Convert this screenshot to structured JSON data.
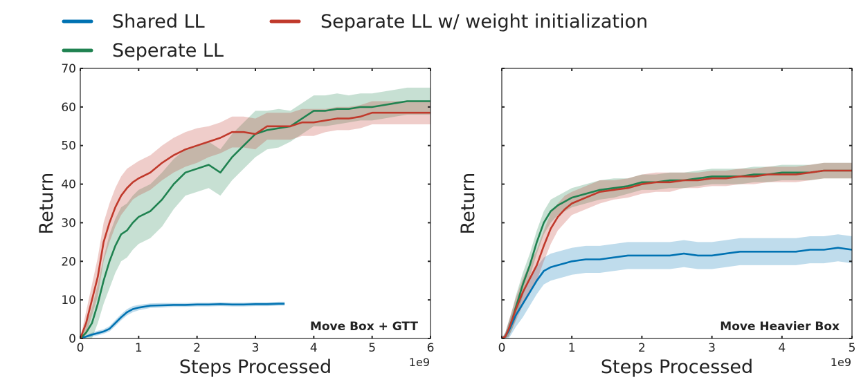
{
  "legend": {
    "items": [
      {
        "label": "Shared LL",
        "color": "#0072b2"
      },
      {
        "label": "Seperate LL",
        "color": "#1f8250"
      },
      {
        "label": "Separate LL w/ weight initialization",
        "color": "#c0392b"
      }
    ]
  },
  "chart_data": [
    {
      "type": "line",
      "title": "",
      "annotation": "Move Box + GTT",
      "xlabel": "Steps Processed",
      "ylabel": "Return",
      "x_exponent_label": "1e9",
      "xlim": [
        0,
        6
      ],
      "ylim": [
        0,
        70
      ],
      "xticks": [
        "0",
        "1",
        "2",
        "3",
        "4",
        "5",
        "6"
      ],
      "yticks": [
        "0",
        "10",
        "20",
        "30",
        "40",
        "50",
        "60",
        "70"
      ],
      "grid": false,
      "shaded_band": true,
      "series": [
        {
          "name": "Shared LL",
          "color": "#0072b2",
          "x": [
            0,
            0.1,
            0.2,
            0.3,
            0.4,
            0.5,
            0.6,
            0.7,
            0.8,
            0.9,
            1.0,
            1.2,
            1.4,
            1.6,
            1.8,
            2.0,
            2.2,
            2.4,
            2.6,
            2.8,
            3.0,
            3.2,
            3.4,
            3.5
          ],
          "values": [
            0,
            0.5,
            1.0,
            1.4,
            1.8,
            2.5,
            4.0,
            5.5,
            6.8,
            7.6,
            8.0,
            8.5,
            8.6,
            8.7,
            8.7,
            8.8,
            8.8,
            8.9,
            8.8,
            8.8,
            8.9,
            8.9,
            9.0,
            9.0
          ],
          "band": [
            0,
            0.3,
            0.5,
            0.6,
            0.6,
            0.7,
            0.8,
            0.8,
            0.8,
            0.8,
            0.7,
            0.6,
            0.6,
            0.5,
            0.5,
            0.5,
            0.5,
            0.5,
            0.5,
            0.5,
            0.5,
            0.5,
            0.5,
            0.5
          ]
        },
        {
          "name": "Seperate LL",
          "color": "#1f8250",
          "x": [
            0,
            0.1,
            0.2,
            0.3,
            0.4,
            0.5,
            0.6,
            0.7,
            0.8,
            0.9,
            1.0,
            1.2,
            1.4,
            1.6,
            1.8,
            2.0,
            2.2,
            2.4,
            2.6,
            2.8,
            3.0,
            3.2,
            3.4,
            3.6,
            3.8,
            4.0,
            4.2,
            4.4,
            4.6,
            4.8,
            5.0,
            5.2,
            5.4,
            5.6,
            5.8,
            6.0
          ],
          "values": [
            0,
            1.5,
            4.0,
            9.0,
            15.0,
            20.0,
            24.0,
            27.0,
            28.0,
            30.0,
            31.5,
            33.0,
            36.0,
            40.0,
            43.0,
            44.0,
            45.0,
            43.0,
            47.0,
            50.0,
            53.0,
            54.0,
            54.5,
            55.0,
            57.0,
            59.0,
            59.0,
            59.5,
            59.5,
            60.0,
            60.0,
            60.5,
            61.0,
            61.5,
            61.5,
            61.5
          ],
          "band": [
            0,
            2,
            4,
            5,
            6,
            7,
            7,
            7,
            7,
            7,
            7,
            7,
            7,
            6.5,
            6,
            6,
            6,
            6,
            6,
            6,
            6,
            5,
            5,
            4,
            4,
            4,
            4,
            4,
            3.5,
            3.5,
            3.5,
            3.5,
            3.5,
            3.5,
            3.5,
            3.5
          ]
        },
        {
          "name": "Separate LL w/ weight initialization",
          "color": "#c0392b",
          "x": [
            0,
            0.1,
            0.2,
            0.3,
            0.4,
            0.5,
            0.6,
            0.7,
            0.8,
            0.9,
            1.0,
            1.2,
            1.4,
            1.6,
            1.8,
            2.0,
            2.2,
            2.4,
            2.6,
            2.8,
            3.0,
            3.2,
            3.4,
            3.6,
            3.8,
            4.0,
            4.2,
            4.4,
            4.6,
            4.8,
            5.0,
            5.2,
            5.4,
            5.6,
            5.8,
            6.0
          ],
          "values": [
            0,
            4.0,
            10.0,
            16.0,
            25.0,
            30.0,
            34.0,
            37.0,
            39.0,
            40.5,
            41.5,
            43.0,
            45.5,
            47.5,
            49.0,
            50.0,
            51.0,
            52.0,
            53.5,
            53.5,
            53.0,
            55.0,
            55.0,
            55.0,
            56.0,
            56.0,
            56.5,
            57.0,
            57.0,
            57.5,
            58.5,
            58.5,
            58.5,
            58.5,
            58.5,
            58.5
          ],
          "band": [
            0,
            3,
            4,
            5,
            5,
            5,
            5,
            5,
            5,
            4.5,
            4.5,
            4.5,
            4.5,
            4.5,
            4.5,
            4.5,
            4,
            4,
            4,
            4,
            4,
            3.5,
            3.5,
            3.5,
            3.5,
            3.5,
            3,
            3,
            3,
            3,
            3,
            3,
            3,
            3,
            3,
            3
          ]
        }
      ]
    },
    {
      "type": "line",
      "title": "",
      "annotation": "Move Heavier Box",
      "xlabel": "Steps Processed",
      "ylabel": "Return",
      "x_exponent_label": "1e9",
      "xlim": [
        0,
        5
      ],
      "ylim": [
        0,
        70
      ],
      "xticks": [
        "0",
        "1",
        "2",
        "3",
        "4",
        "5"
      ],
      "yticks": [],
      "grid": false,
      "shaded_band": true,
      "series": [
        {
          "name": "Shared LL",
          "color": "#0072b2",
          "x": [
            0,
            0.05,
            0.1,
            0.15,
            0.2,
            0.3,
            0.4,
            0.5,
            0.6,
            0.7,
            0.8,
            0.9,
            1.0,
            1.2,
            1.4,
            1.6,
            1.8,
            2.0,
            2.2,
            2.4,
            2.6,
            2.8,
            3.0,
            3.2,
            3.4,
            3.6,
            3.8,
            4.0,
            4.2,
            4.4,
            4.6,
            4.8,
            5.0
          ],
          "values": [
            0,
            0.5,
            2.0,
            4.0,
            6.0,
            9.0,
            12.0,
            15.0,
            17.5,
            18.5,
            19.0,
            19.5,
            20.0,
            20.5,
            20.5,
            21.0,
            21.5,
            21.5,
            21.5,
            21.5,
            22.0,
            21.5,
            21.5,
            22.0,
            22.5,
            22.5,
            22.5,
            22.5,
            22.5,
            23.0,
            23.0,
            23.5,
            23.0
          ],
          "band": [
            0,
            1,
            2,
            2.5,
            3,
            3.5,
            3.5,
            3.5,
            3.5,
            3.5,
            3.5,
            3.5,
            3.5,
            3.5,
            3.5,
            3.5,
            3.5,
            3.5,
            3.5,
            3.5,
            3.5,
            3.5,
            3.5,
            3.5,
            3.5,
            3.5,
            3.5,
            3.5,
            3.5,
            3.5,
            3.5,
            3.5,
            3.5
          ]
        },
        {
          "name": "Seperate LL",
          "color": "#1f8250",
          "x": [
            0,
            0.05,
            0.1,
            0.15,
            0.2,
            0.3,
            0.4,
            0.5,
            0.6,
            0.7,
            0.8,
            0.9,
            1.0,
            1.2,
            1.4,
            1.6,
            1.8,
            2.0,
            2.2,
            2.4,
            2.6,
            2.8,
            3.0,
            3.2,
            3.4,
            3.6,
            3.8,
            4.0,
            4.2,
            4.4,
            4.6,
            4.8,
            5.0
          ],
          "values": [
            0,
            0.5,
            2.5,
            5.0,
            8.0,
            14.0,
            19.0,
            25.0,
            30.0,
            33.0,
            34.5,
            35.5,
            36.5,
            37.5,
            38.5,
            39.0,
            39.5,
            40.5,
            40.5,
            41.0,
            41.0,
            41.5,
            42.0,
            42.0,
            42.0,
            42.5,
            42.5,
            43.0,
            43.0,
            43.0,
            43.5,
            43.5,
            43.5
          ],
          "band": [
            0,
            1,
            2,
            2.5,
            3,
            3,
            3,
            3,
            3,
            3,
            2.5,
            2.5,
            2.5,
            2.5,
            2.5,
            2.5,
            2,
            2,
            2,
            2,
            2,
            2,
            2,
            2,
            2,
            2,
            2,
            2,
            2,
            2,
            2,
            2,
            2
          ]
        },
        {
          "name": "Separate LL w/ weight initialization",
          "color": "#c0392b",
          "x": [
            0,
            0.05,
            0.1,
            0.15,
            0.2,
            0.3,
            0.4,
            0.5,
            0.6,
            0.7,
            0.8,
            0.9,
            1.0,
            1.2,
            1.4,
            1.6,
            1.8,
            2.0,
            2.2,
            2.4,
            2.6,
            2.8,
            3.0,
            3.2,
            3.4,
            3.6,
            3.8,
            4.0,
            4.2,
            4.4,
            4.6,
            4.8,
            5.0
          ],
          "values": [
            0,
            0.5,
            2.5,
            5.0,
            7.5,
            12.0,
            15.5,
            19.0,
            24.0,
            28.5,
            31.5,
            33.5,
            35.0,
            36.5,
            38.0,
            38.5,
            39.0,
            40.0,
            40.5,
            40.5,
            41.0,
            41.0,
            41.5,
            41.5,
            42.0,
            42.0,
            42.5,
            42.5,
            42.5,
            43.0,
            43.5,
            43.5,
            43.5
          ],
          "band": [
            0,
            1,
            2,
            2.5,
            3,
            3.5,
            4,
            4,
            4,
            4,
            3.5,
            3.5,
            3,
            3,
            3,
            2.5,
            2.5,
            2.5,
            2.5,
            2.5,
            2,
            2,
            2,
            2,
            2,
            2,
            2,
            2,
            2,
            2,
            2,
            2,
            2
          ]
        }
      ]
    }
  ]
}
